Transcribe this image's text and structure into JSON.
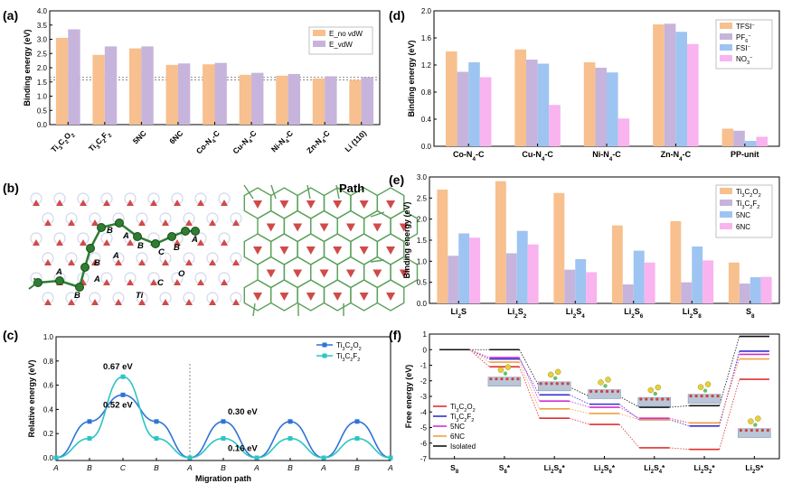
{
  "panels": {
    "a": {
      "letter": "(a)"
    },
    "b": {
      "letter": "(b)",
      "path_label": "Path",
      "site_labels": [
        "A",
        "B",
        "C",
        "O",
        "Ti"
      ]
    },
    "c": {
      "letter": "(c)"
    },
    "d": {
      "letter": "(d)"
    },
    "e": {
      "letter": "(e)"
    },
    "f": {
      "letter": "(f)"
    }
  },
  "chart_data": [
    {
      "id": "a",
      "type": "bar",
      "title": "",
      "ylabel": "Binding energy (eV)",
      "ylim": [
        0,
        4.0
      ],
      "yticks": [
        "0.0",
        "0.5",
        "1.0",
        "1.5",
        "2.0",
        "2.5",
        "3.0",
        "3.5",
        "4.0"
      ],
      "categories": [
        "Ti3C2O2",
        "Ti3C2F2",
        "5NC",
        "6NC",
        "Co-N4-C",
        "Cu-N4-C",
        "Ni-N4-C",
        "Zn-N4-C",
        "Li (110)"
      ],
      "category_labels": [
        [
          [
            "Ti",
            0
          ],
          [
            "3",
            1
          ],
          [
            "C",
            0
          ],
          [
            "2",
            1
          ],
          [
            "O",
            0
          ],
          [
            "2",
            1
          ]
        ],
        [
          [
            "Ti",
            0
          ],
          [
            "3",
            1
          ],
          [
            "C",
            0
          ],
          [
            "2",
            1
          ],
          [
            "F",
            0
          ],
          [
            "2",
            1
          ]
        ],
        [
          [
            "5NC",
            0
          ]
        ],
        [
          [
            "6NC",
            0
          ]
        ],
        [
          [
            "Co-N",
            0
          ],
          [
            "4",
            1
          ],
          [
            "-C",
            0
          ]
        ],
        [
          [
            "Cu-N",
            0
          ],
          [
            "4",
            1
          ],
          [
            "-C",
            0
          ]
        ],
        [
          [
            "Ni-N",
            0
          ],
          [
            "4",
            1
          ],
          [
            "-C",
            0
          ]
        ],
        [
          [
            "Zn-N",
            0
          ],
          [
            "4",
            1
          ],
          [
            "-C",
            0
          ]
        ],
        [
          [
            "Li (110)",
            0
          ]
        ]
      ],
      "series": [
        {
          "name": "E_no vdW",
          "color": "#f7c08e",
          "values": [
            3.05,
            2.45,
            2.68,
            2.1,
            2.12,
            1.75,
            1.72,
            1.62,
            1.57
          ]
        },
        {
          "name": "E_vdW",
          "color": "#c7b4dc",
          "values": [
            3.35,
            2.75,
            2.75,
            2.15,
            2.17,
            1.82,
            1.78,
            1.7,
            1.67
          ]
        }
      ],
      "reference_lines": [
        1.57,
        1.67
      ],
      "legend": "top-right",
      "grid": false
    },
    {
      "id": "d",
      "type": "bar",
      "title": "",
      "ylabel": "Binding energy (eV)",
      "ylim": [
        0,
        2.0
      ],
      "yticks": [
        "0.0",
        "0.4",
        "0.8",
        "1.2",
        "1.6",
        "2.0"
      ],
      "categories": [
        "Co-N4-C",
        "Cu-N4-C",
        "Ni-N4-C",
        "Zn-N4-C",
        "PP-unit"
      ],
      "category_labels": [
        [
          [
            "Co-N",
            0
          ],
          [
            "4",
            1
          ],
          [
            "-C",
            0
          ]
        ],
        [
          [
            "Cu-N",
            0
          ],
          [
            "4",
            1
          ],
          [
            "-C",
            0
          ]
        ],
        [
          [
            "Ni-N",
            0
          ],
          [
            "4",
            1
          ],
          [
            "-C",
            0
          ]
        ],
        [
          [
            "Zn-N",
            0
          ],
          [
            "4",
            1
          ],
          [
            "-C",
            0
          ]
        ],
        [
          [
            "PP-unit",
            0
          ]
        ]
      ],
      "series": [
        {
          "name": "TFSI-",
          "label": [
            [
              "TFSI",
              0
            ],
            [
              "−",
              2
            ]
          ],
          "color": "#f7c08e",
          "values": [
            1.4,
            1.43,
            1.24,
            1.8,
            0.26
          ]
        },
        {
          "name": "PF6-",
          "label": [
            [
              "PF",
              0
            ],
            [
              "6",
              1
            ],
            [
              "−",
              2
            ]
          ],
          "color": "#c7b4dc",
          "values": [
            1.1,
            1.28,
            1.16,
            1.81,
            0.23
          ]
        },
        {
          "name": "FSI-",
          "label": [
            [
              "FSI",
              0
            ],
            [
              "−",
              2
            ]
          ],
          "color": "#9ec4f2",
          "values": [
            1.24,
            1.22,
            1.09,
            1.69,
            0.08
          ]
        },
        {
          "name": "NO3-",
          "label": [
            [
              "NO",
              0
            ],
            [
              "3",
              1
            ],
            [
              "−",
              2
            ]
          ],
          "color": "#f9b3ee",
          "values": [
            1.02,
            0.61,
            0.41,
            1.51,
            0.14
          ]
        }
      ],
      "legend": "top-right",
      "grid": false
    },
    {
      "id": "e",
      "type": "bar",
      "title": "",
      "ylabel": "Binding energy (eV)",
      "ylim": [
        0,
        3.0
      ],
      "yticks": [
        "0.0",
        "0.5",
        "1.0",
        "1.5",
        "2.0",
        "2.5",
        "3.0"
      ],
      "categories": [
        "Li2S",
        "Li2S2",
        "Li2S4",
        "Li2S6",
        "Li2S8",
        "S8"
      ],
      "category_labels": [
        [
          [
            "Li",
            0
          ],
          [
            "2",
            1
          ],
          [
            "S",
            0
          ]
        ],
        [
          [
            "Li",
            0
          ],
          [
            "2",
            1
          ],
          [
            "S",
            0
          ],
          [
            "2",
            1
          ]
        ],
        [
          [
            "Li",
            0
          ],
          [
            "2",
            1
          ],
          [
            "S",
            0
          ],
          [
            "4",
            1
          ]
        ],
        [
          [
            "Li",
            0
          ],
          [
            "2",
            1
          ],
          [
            "S",
            0
          ],
          [
            "6",
            1
          ]
        ],
        [
          [
            "Li",
            0
          ],
          [
            "2",
            1
          ],
          [
            "S",
            0
          ],
          [
            "8",
            1
          ]
        ],
        [
          [
            "S",
            0
          ],
          [
            "8",
            1
          ]
        ]
      ],
      "series": [
        {
          "name": "Ti3C2O2",
          "label": [
            [
              "Ti",
              0
            ],
            [
              "3",
              1
            ],
            [
              "C",
              0
            ],
            [
              "2",
              1
            ],
            [
              "O",
              0
            ],
            [
              "2",
              1
            ]
          ],
          "color": "#f7c08e",
          "values": [
            2.7,
            2.9,
            2.62,
            1.85,
            1.95,
            0.97
          ]
        },
        {
          "name": "Ti3C2F2",
          "label": [
            [
              "Ti",
              0
            ],
            [
              "3",
              1
            ],
            [
              "C",
              0
            ],
            [
              "2",
              1
            ],
            [
              "F",
              0
            ],
            [
              "2",
              1
            ]
          ],
          "color": "#c7b4dc",
          "values": [
            1.13,
            1.19,
            0.8,
            0.45,
            0.5,
            0.47
          ]
        },
        {
          "name": "5NC",
          "label": [
            [
              "5NC",
              0
            ]
          ],
          "color": "#9ec4f2",
          "values": [
            1.66,
            1.72,
            1.05,
            1.25,
            1.35,
            0.62
          ]
        },
        {
          "name": "6NC",
          "label": [
            [
              "6NC",
              0
            ]
          ],
          "color": "#f9b3ee",
          "values": [
            1.56,
            1.4,
            0.74,
            0.97,
            1.02,
            0.63
          ]
        }
      ],
      "legend": "top-right",
      "grid": false
    },
    {
      "id": "c",
      "type": "line",
      "title": "",
      "xlabel": "Migration path",
      "ylabel": "Relative energy (eV)",
      "ylim": [
        0,
        1.0
      ],
      "yticks": [
        "0.0",
        "0.2",
        "0.4",
        "0.6",
        "0.8",
        "1.0"
      ],
      "xticks": [
        "A",
        "B",
        "C",
        "B",
        "A",
        "B",
        "A",
        "B",
        "A",
        "B",
        "A"
      ],
      "x": [
        0,
        1,
        2,
        3,
        4,
        5,
        6,
        7,
        8,
        9,
        10
      ],
      "series": [
        {
          "name": "Ti3C2O2",
          "label": [
            [
              "Ti",
              0
            ],
            [
              "3",
              1
            ],
            [
              "C",
              0
            ],
            [
              "2",
              1
            ],
            [
              "O",
              0
            ],
            [
              "2",
              1
            ]
          ],
          "color": "#2f72d6",
          "marker": "square",
          "values": [
            0,
            0.3,
            0.52,
            0.3,
            0,
            0.3,
            0,
            0.3,
            0,
            0.3,
            0
          ]
        },
        {
          "name": "Ti3C2F2",
          "label": [
            [
              "Ti",
              0
            ],
            [
              "3",
              1
            ],
            [
              "C",
              0
            ],
            [
              "2",
              1
            ],
            [
              "F",
              0
            ],
            [
              "2",
              1
            ]
          ],
          "color": "#2ec4c4",
          "marker": "square",
          "values": [
            0,
            0.16,
            0.67,
            0.16,
            0,
            0.16,
            0,
            0.16,
            0,
            0.16,
            0
          ]
        }
      ],
      "annotations": [
        "0.67 eV",
        "0.52 eV",
        "0.30 eV",
        "0.16 eV"
      ],
      "divider_x": 4,
      "legend": "top-right",
      "grid": false
    },
    {
      "id": "f",
      "type": "line",
      "title": "",
      "ylabel": "Free energy (eV)",
      "ylim": [
        -7,
        1
      ],
      "yticks": [
        "1",
        "0",
        "-1",
        "-2",
        "-3",
        "-4",
        "-5",
        "-6",
        "-7"
      ],
      "categories": [
        "S8",
        "S8*",
        "Li2S8*",
        "Li2S6*",
        "Li2S4*",
        "Li2S2*",
        "Li2S*"
      ],
      "category_labels": [
        [
          [
            "S",
            0
          ],
          [
            "8",
            1
          ]
        ],
        [
          [
            "S",
            0
          ],
          [
            "8",
            1
          ],
          [
            "*",
            0
          ]
        ],
        [
          [
            "Li",
            0
          ],
          [
            "2",
            1
          ],
          [
            "S",
            0
          ],
          [
            "8",
            1
          ],
          [
            "*",
            0
          ]
        ],
        [
          [
            "Li",
            0
          ],
          [
            "2",
            1
          ],
          [
            "S",
            0
          ],
          [
            "6",
            1
          ],
          [
            "*",
            0
          ]
        ],
        [
          [
            "Li",
            0
          ],
          [
            "2",
            1
          ],
          [
            "S",
            0
          ],
          [
            "4",
            1
          ],
          [
            "*",
            0
          ]
        ],
        [
          [
            "Li",
            0
          ],
          [
            "2",
            1
          ],
          [
            "S",
            0
          ],
          [
            "2",
            1
          ],
          [
            "*",
            0
          ]
        ],
        [
          [
            "Li",
            0
          ],
          [
            "2",
            1
          ],
          [
            "S",
            0
          ],
          [
            "*",
            0
          ]
        ]
      ],
      "series": [
        {
          "name": "Ti3C2O2",
          "label": [
            [
              "Ti",
              0
            ],
            [
              "3",
              1
            ],
            [
              "C",
              0
            ],
            [
              "2",
              1
            ],
            [
              "O",
              0
            ],
            [
              "2",
              1
            ]
          ],
          "color": "#e03030",
          "values": [
            0,
            -1.1,
            -4.4,
            -4.8,
            -6.3,
            -6.4,
            -1.9
          ]
        },
        {
          "name": "Ti3C2F2",
          "label": [
            [
              "Ti",
              0
            ],
            [
              "3",
              1
            ],
            [
              "C",
              0
            ],
            [
              "2",
              1
            ],
            [
              "F",
              0
            ],
            [
              "2",
              1
            ]
          ],
          "color": "#3030d0",
          "values": [
            0,
            -0.6,
            -2.9,
            -3.5,
            -4.5,
            -4.9,
            -0.1
          ]
        },
        {
          "name": "5NC",
          "label": [
            [
              "5NC",
              0
            ]
          ],
          "color": "#d030d0",
          "values": [
            0,
            -0.5,
            -3.3,
            -3.7,
            -4.4,
            -4.7,
            -0.3
          ]
        },
        {
          "name": "6NC",
          "label": [
            [
              "6NC",
              0
            ]
          ],
          "color": "#f0a040",
          "values": [
            0,
            -0.8,
            -3.8,
            -4.1,
            -4.5,
            -4.7,
            -0.6
          ]
        },
        {
          "name": "Isolated",
          "label": [
            [
              "Isolated",
              0
            ]
          ],
          "color": "#111111",
          "values": [
            0,
            0.0,
            -2.4,
            -3.0,
            -3.7,
            -3.6,
            0.85
          ]
        }
      ],
      "legend": "bottom-left",
      "grid": false
    }
  ]
}
